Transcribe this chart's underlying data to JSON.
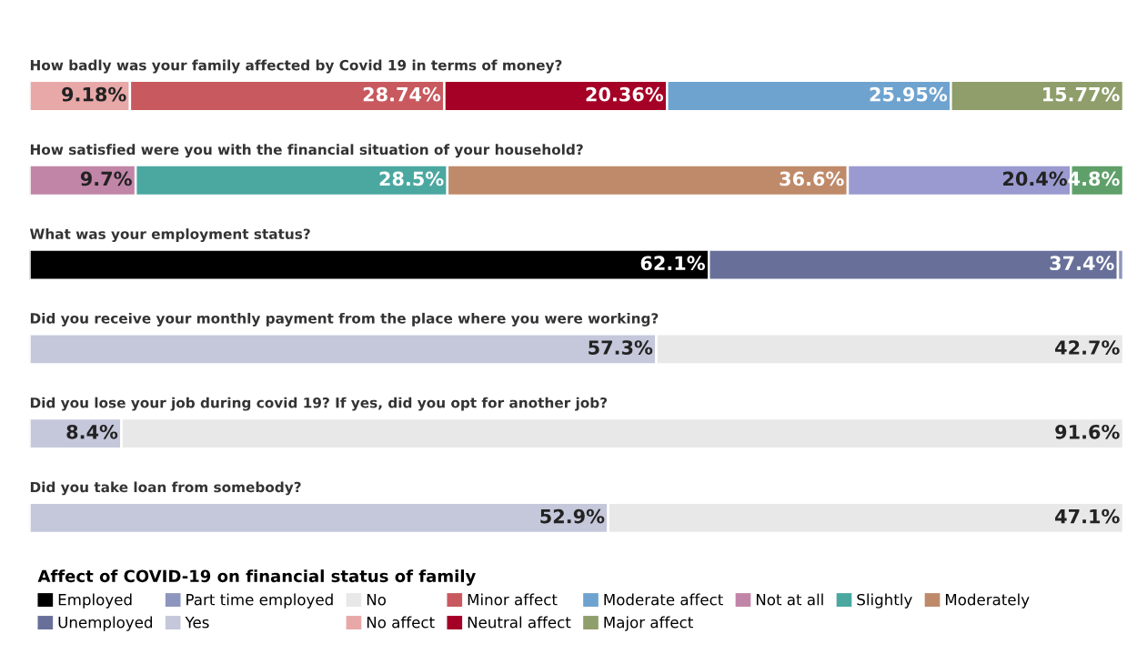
{
  "chart_data": {
    "type": "bar",
    "orientation": "horizontal",
    "stacked": true,
    "legend": "bottom",
    "tick_labels": false,
    "xlim": [
      0,
      100
    ],
    "legend_title": "Affect of COVID-19 on financial status of family",
    "categories": [
      "How badly was your family affected by Covid 19 in terms of money?",
      "How satisfied were you with the financial situation of your household?",
      "What was your employment status?",
      "Did you receive your monthly payment from the place where you were working?",
      "Did you lose your job during covid 19? If yes, did you opt for another job?",
      "Did you take loan from somebody?"
    ],
    "series": [
      {
        "name": "Employed",
        "color": "#000000",
        "values": [
          null,
          null,
          62.1,
          null,
          null,
          null
        ],
        "value_labels": [
          null,
          null,
          "62.1%",
          null,
          null,
          null
        ]
      },
      {
        "name": "Unemployed",
        "color": "#68709a",
        "values": [
          null,
          null,
          37.4,
          null,
          null,
          null
        ],
        "value_labels": [
          null,
          null,
          "37.4%",
          null,
          null,
          null
        ]
      },
      {
        "name": "Part time employed",
        "color": "#8e96bd",
        "values": [
          null,
          null,
          0.5,
          null,
          null,
          null
        ],
        "value_labels": [
          null,
          null,
          null,
          null,
          null,
          null
        ]
      },
      {
        "name": "Yes",
        "color": "#c5c8da",
        "values": [
          null,
          null,
          null,
          57.3,
          8.4,
          52.9
        ],
        "value_labels": [
          null,
          null,
          null,
          "57.3%",
          "8.4%",
          "52.9%"
        ]
      },
      {
        "name": "No",
        "color": "#e8e8e8",
        "values": [
          null,
          null,
          null,
          42.7,
          91.6,
          47.1
        ],
        "value_labels": [
          null,
          null,
          null,
          "42.7%",
          "91.6%",
          "47.1%"
        ]
      },
      {
        "name": "No affect",
        "color": "#e8a8a8",
        "values": [
          9.18,
          null,
          null,
          null,
          null,
          null
        ],
        "value_labels": [
          "9.18%",
          null,
          null,
          null,
          null,
          null
        ]
      },
      {
        "name": "Minor affect",
        "color": "#c8595e",
        "values": [
          28.74,
          null,
          null,
          null,
          null,
          null
        ],
        "value_labels": [
          "28.74%",
          null,
          null,
          null,
          null,
          null
        ]
      },
      {
        "name": "Neutral affect",
        "color": "#a50026",
        "values": [
          20.36,
          null,
          null,
          null,
          null,
          null
        ],
        "value_labels": [
          "20.36%",
          null,
          null,
          null,
          null,
          null
        ]
      },
      {
        "name": "Moderate affect",
        "color": "#6fa3cf",
        "values": [
          25.95,
          null,
          null,
          null,
          null,
          null
        ],
        "value_labels": [
          "25.95%",
          null,
          null,
          null,
          null,
          null
        ]
      },
      {
        "name": "Major affect",
        "color": "#8f9e6a",
        "values": [
          15.77,
          null,
          null,
          null,
          null,
          null
        ],
        "value_labels": [
          "15.77%",
          null,
          null,
          null,
          null,
          null
        ]
      },
      {
        "name": "Not at all",
        "color": "#c185a8",
        "values": [
          null,
          9.7,
          null,
          null,
          null,
          null
        ],
        "value_labels": [
          null,
          "9.7%",
          null,
          null,
          null,
          null
        ]
      },
      {
        "name": "Slightly",
        "color": "#4aa8a0",
        "values": [
          null,
          28.5,
          null,
          null,
          null,
          null
        ],
        "value_labels": [
          null,
          "28.5%",
          null,
          null,
          null,
          null
        ]
      },
      {
        "name": "Moderately",
        "color": "#bf8a6a",
        "values": [
          null,
          36.6,
          null,
          null,
          null,
          null
        ],
        "value_labels": [
          null,
          "36.6%",
          null,
          null,
          null,
          null
        ]
      },
      {
        "color": "#9a9ad0",
        "values": [
          null,
          20.4,
          null,
          null,
          null,
          null
        ],
        "value_labels": [
          null,
          "20.4%",
          null,
          null,
          null,
          null
        ]
      },
      {
        "color": "#5fa06a",
        "values": [
          null,
          4.8,
          null,
          null,
          null,
          null
        ],
        "value_labels": [
          null,
          "4.8%",
          null,
          null,
          null,
          null
        ]
      }
    ]
  }
}
